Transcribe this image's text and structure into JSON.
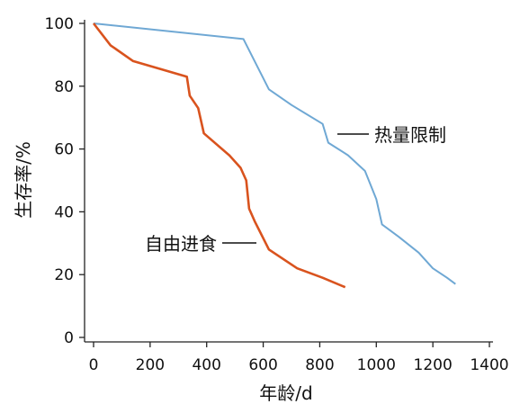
{
  "chart_data": {
    "type": "line",
    "xlabel": "年龄/d",
    "ylabel": "生存率/%",
    "xlim": [
      0,
      1400
    ],
    "ylim": [
      0,
      100
    ],
    "x_ticks": [
      "0",
      "200",
      "400",
      "600",
      "800",
      "1000",
      "1200",
      "1400"
    ],
    "y_ticks": [
      "0",
      "20",
      "40",
      "60",
      "80",
      "100"
    ],
    "grid": false,
    "series": [
      {
        "name": "热量限制",
        "color": "#6fa8d4",
        "points": [
          [
            0,
            100
          ],
          [
            530,
            95
          ],
          [
            620,
            79
          ],
          [
            700,
            74
          ],
          [
            810,
            68
          ],
          [
            830,
            62
          ],
          [
            900,
            58
          ],
          [
            960,
            53
          ],
          [
            1000,
            44
          ],
          [
            1020,
            36
          ],
          [
            1080,
            32
          ],
          [
            1150,
            27
          ],
          [
            1200,
            22
          ],
          [
            1250,
            19
          ],
          [
            1280,
            17
          ]
        ]
      },
      {
        "name": "自由进食",
        "color": "#d9531e",
        "points": [
          [
            0,
            100
          ],
          [
            60,
            93
          ],
          [
            140,
            88
          ],
          [
            330,
            83
          ],
          [
            340,
            77
          ],
          [
            370,
            73
          ],
          [
            390,
            65
          ],
          [
            480,
            58
          ],
          [
            520,
            54
          ],
          [
            540,
            50
          ],
          [
            550,
            41
          ],
          [
            570,
            37
          ],
          [
            620,
            28
          ],
          [
            720,
            22
          ],
          [
            810,
            19
          ],
          [
            890,
            16
          ]
        ]
      }
    ],
    "annotations": [
      {
        "text": "热量限制",
        "series": "热量限制"
      },
      {
        "text": "自由进食",
        "series": "自由进食"
      }
    ]
  }
}
